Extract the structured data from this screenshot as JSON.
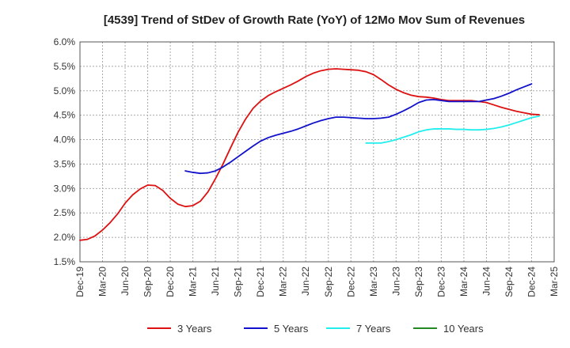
{
  "chart_data": {
    "type": "line",
    "title": "[4539]  Trend of StDev of Growth Rate (YoY) of 12Mo Mov Sum of Revenues",
    "xlabel": "",
    "ylabel": "",
    "ylim": [
      1.5,
      6.0
    ],
    "y_ticks": [
      "6.0%",
      "5.5%",
      "5.0%",
      "4.5%",
      "4.0%",
      "3.5%",
      "3.0%",
      "2.5%",
      "2.0%",
      "1.5%"
    ],
    "x_ticks": [
      "Dec-19",
      "Mar-20",
      "Jun-20",
      "Sep-20",
      "Dec-20",
      "Mar-21",
      "Jun-21",
      "Sep-21",
      "Dec-21",
      "Mar-22",
      "Jun-22",
      "Sep-22",
      "Dec-22",
      "Mar-23",
      "Jun-23",
      "Sep-23",
      "Dec-23",
      "Mar-24",
      "Jun-24",
      "Sep-24",
      "Dec-24",
      "Mar-25"
    ],
    "grid": true,
    "legend_position": "bottom",
    "series": [
      {
        "name": "3 Years",
        "color": "#dd1111",
        "start_month": 0,
        "values": [
          1.94,
          1.96,
          2.03,
          2.15,
          2.3,
          2.48,
          2.7,
          2.87,
          2.99,
          3.07,
          3.06,
          2.96,
          2.8,
          2.68,
          2.63,
          2.65,
          2.74,
          2.93,
          3.2,
          3.5,
          3.83,
          4.15,
          4.42,
          4.64,
          4.79,
          4.9,
          4.98,
          5.05,
          5.12,
          5.2,
          5.29,
          5.36,
          5.41,
          5.44,
          5.45,
          5.44,
          5.43,
          5.42,
          5.39,
          5.33,
          5.23,
          5.12,
          5.03,
          4.96,
          4.91,
          4.88,
          4.87,
          4.85,
          4.82,
          4.8,
          4.8,
          4.8,
          4.8,
          4.78,
          4.76,
          4.71,
          4.66,
          4.62,
          4.58,
          4.55,
          4.52,
          4.51
        ]
      },
      {
        "name": "5 Years",
        "color": "#1111cc",
        "start_month": 14,
        "values": [
          3.36,
          3.33,
          3.31,
          3.32,
          3.36,
          3.44,
          3.54,
          3.65,
          3.76,
          3.87,
          3.97,
          4.04,
          4.09,
          4.13,
          4.17,
          4.22,
          4.28,
          4.34,
          4.39,
          4.43,
          4.46,
          4.46,
          4.45,
          4.44,
          4.43,
          4.43,
          4.44,
          4.46,
          4.52,
          4.59,
          4.67,
          4.76,
          4.81,
          4.82,
          4.8,
          4.78,
          4.78,
          4.78,
          4.78,
          4.78,
          4.81,
          4.84,
          4.89,
          4.95,
          5.02,
          5.08,
          5.14
        ]
      },
      {
        "name": "7 Years",
        "color": "#22eeee",
        "start_month": 38,
        "values": [
          3.93,
          3.93,
          3.93,
          3.96,
          4.0,
          4.05,
          4.1,
          4.16,
          4.2,
          4.22,
          4.22,
          4.22,
          4.21,
          4.21,
          4.2,
          4.2,
          4.21,
          4.23,
          4.26,
          4.3,
          4.35,
          4.4,
          4.45,
          4.48
        ]
      },
      {
        "name": "10 Years",
        "color": "#228822",
        "start_month": 0,
        "values": []
      }
    ]
  }
}
